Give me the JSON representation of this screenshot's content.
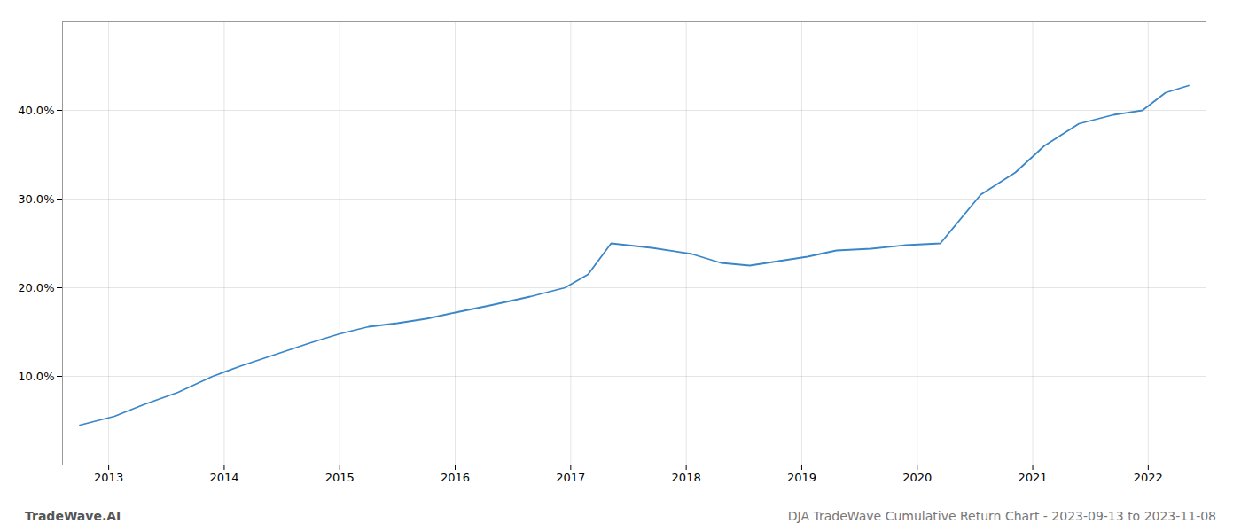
{
  "chart_data": {
    "type": "line",
    "annotations": [
      "TradeWave.AI",
      "DJA TradeWave Cumulative Return Chart - 2023-09-13 to 2023-11-08"
    ],
    "x": [
      2012.75,
      2013.05,
      2013.3,
      2013.6,
      2013.9,
      2014.15,
      2014.45,
      2014.75,
      2015.0,
      2015.25,
      2015.5,
      2015.75,
      2016.0,
      2016.3,
      2016.65,
      2016.95,
      2017.15,
      2017.35,
      2017.7,
      2018.05,
      2018.3,
      2018.55,
      2018.8,
      2019.05,
      2019.3,
      2019.6,
      2019.9,
      2020.2,
      2020.55,
      2020.85,
      2021.1,
      2021.4,
      2021.7,
      2021.95,
      2022.15,
      2022.35
    ],
    "values": [
      4.5,
      5.5,
      6.8,
      8.2,
      10.0,
      11.2,
      12.5,
      13.8,
      14.8,
      15.6,
      16.0,
      16.5,
      17.2,
      18.0,
      19.0,
      20.0,
      21.5,
      25.0,
      24.5,
      23.8,
      22.8,
      22.5,
      23.0,
      23.5,
      24.2,
      24.4,
      24.8,
      25.0,
      30.5,
      33.0,
      36.0,
      38.5,
      39.5,
      40.0,
      42.0,
      42.8
    ],
    "color": "#3a86c8",
    "xlim": [
      2012.6,
      2022.5
    ],
    "ylim": [
      0,
      50
    ],
    "xticks": [
      2013,
      2014,
      2015,
      2016,
      2017,
      2018,
      2019,
      2020,
      2021,
      2022
    ],
    "yticks": [
      {
        "value": 10.0,
        "label": "10.0%"
      },
      {
        "value": 20.0,
        "label": "20.0%"
      },
      {
        "value": 30.0,
        "label": "30.0%"
      },
      {
        "value": 40.0,
        "label": "40.0%"
      }
    ],
    "grid": true
  }
}
